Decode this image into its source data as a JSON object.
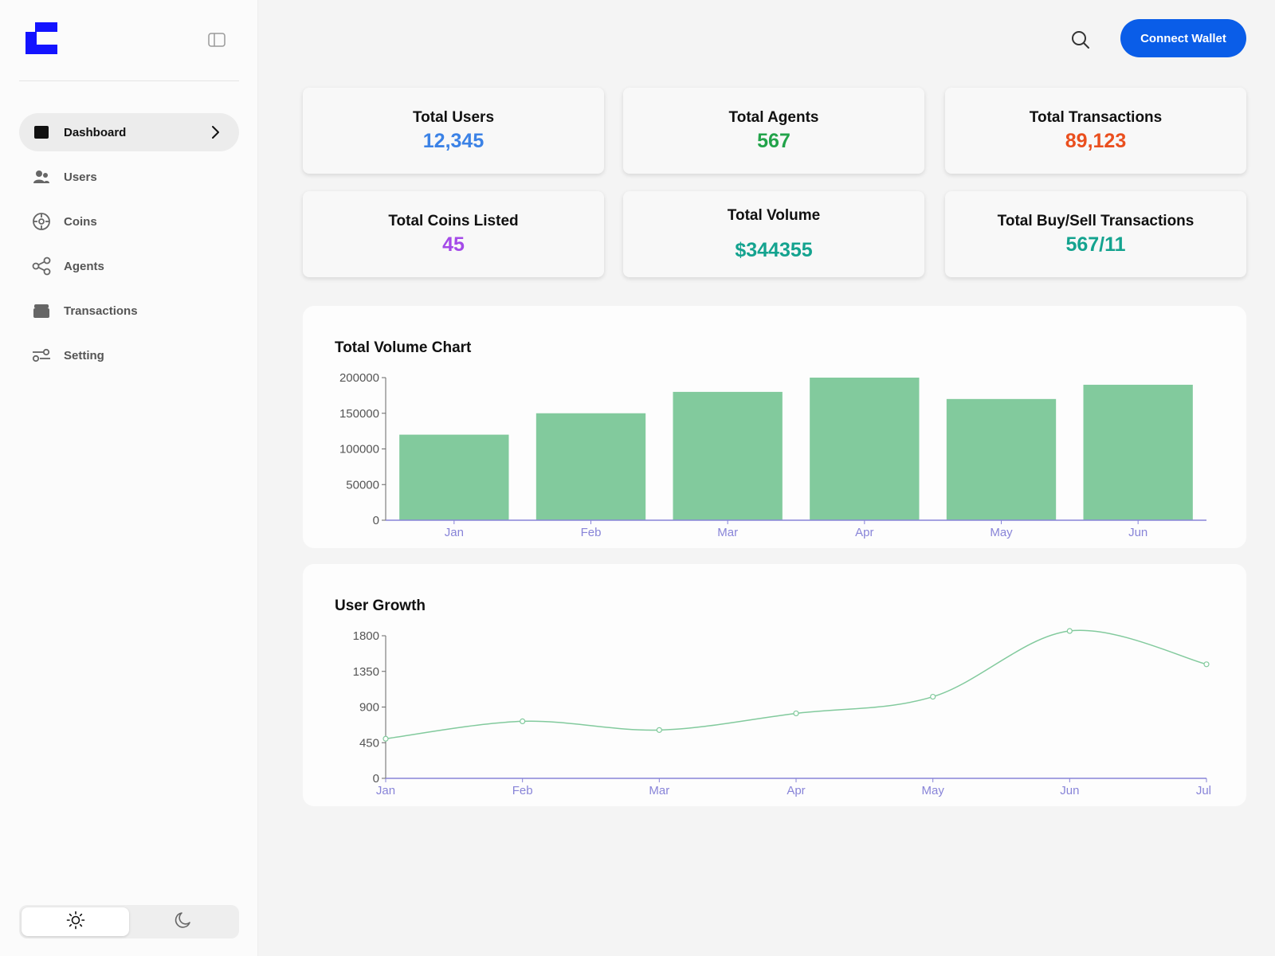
{
  "sidebar": {
    "logo": "brand-logo",
    "items": [
      {
        "key": "dashboard",
        "label": "Dashboard",
        "icon": "dashboard-icon",
        "active": true
      },
      {
        "key": "users",
        "label": "Users",
        "icon": "users-icon"
      },
      {
        "key": "coins",
        "label": "Coins",
        "icon": "coin-icon"
      },
      {
        "key": "agents",
        "label": "Agents",
        "icon": "share-icon"
      },
      {
        "key": "transactions",
        "label": "Transactions",
        "icon": "wallet-icon"
      },
      {
        "key": "setting",
        "label": "Setting",
        "icon": "sliders-icon"
      }
    ],
    "theme": {
      "selected": "light",
      "options": [
        "sun-icon",
        "moon-icon"
      ]
    }
  },
  "header": {
    "connect_label": "Connect Wallet",
    "accent": "#0a5de8"
  },
  "stats": [
    {
      "title": "Total Users",
      "value": "12,345",
      "color": "#3b82e6"
    },
    {
      "title": "Total Agents",
      "value": "567",
      "color": "#22a34a"
    },
    {
      "title": "Total Transactions",
      "value": "89,123",
      "color": "#ea4f1e"
    },
    {
      "title": "Total Coins Listed",
      "value": "45",
      "color": "#a44ae8"
    },
    {
      "title": "Total Volume",
      "value": "$344355",
      "color": "#14a38f"
    },
    {
      "title": "Total Buy/Sell Transactions",
      "value": "567/11",
      "color": "#14a38f"
    }
  ],
  "chart_data": [
    {
      "type": "bar",
      "title": "Total Volume Chart",
      "categories": [
        "Jan",
        "Feb",
        "Mar",
        "Apr",
        "May",
        "Jun"
      ],
      "values": [
        120000,
        150000,
        180000,
        200000,
        170000,
        190000
      ],
      "ylim": [
        0,
        200000
      ],
      "yticks": [
        0,
        50000,
        100000,
        150000,
        200000
      ],
      "color": "#82ca9d",
      "axis_color": "#8884d8",
      "grid": false
    },
    {
      "type": "line",
      "title": "User Growth",
      "categories": [
        "Jan",
        "Feb",
        "Mar",
        "Apr",
        "May",
        "Jun",
        "Jul"
      ],
      "values": [
        500,
        720,
        610,
        820,
        1030,
        1860,
        1440
      ],
      "ylim": [
        0,
        1800
      ],
      "yticks": [
        0,
        450,
        900,
        1350,
        1800
      ],
      "color": "#82ca9d",
      "axis_color": "#8884d8",
      "grid": false
    }
  ]
}
